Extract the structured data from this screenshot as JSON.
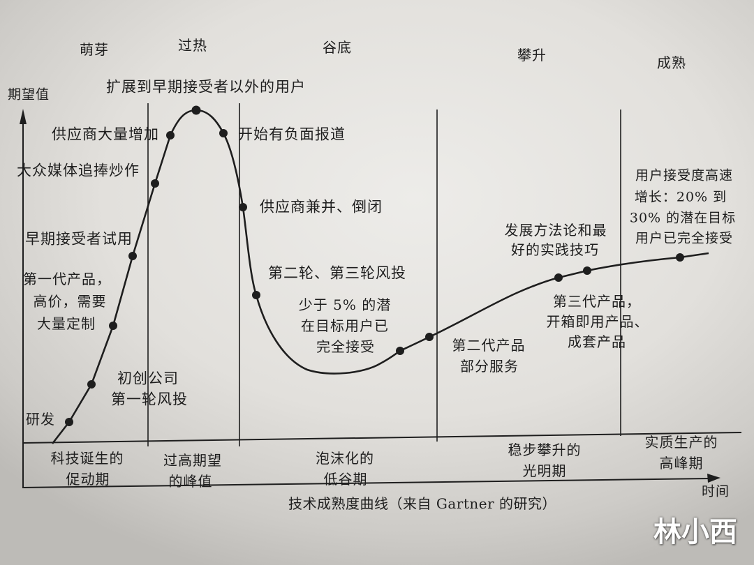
{
  "phases_top": [
    "萌芽",
    "过热",
    "谷底",
    "攀升",
    "成熟"
  ],
  "axes": {
    "y_label": "期望值",
    "x_label": "时间"
  },
  "annotations": {
    "expand_users": "扩展到早期接受者以外的用户",
    "vendors_increase": "供应商大量增加",
    "negative_press": "开始有负面报道",
    "media_hype": "大众媒体追捧炒作",
    "consolidation": "供应商兼并、倒闭",
    "early_adopters": "早期接受者试用",
    "first_gen": [
      "第一代产品，",
      "高价，需要",
      "大量定制"
    ],
    "funding_rounds": "第二轮、第三轮风投",
    "less_than_5": [
      "少于 5% 的潜",
      "在目标用户已",
      "完全接受"
    ],
    "methodology": [
      "发展方法论和最",
      "好的实践技巧"
    ],
    "adoption_growth": [
      "用户接受度高速",
      "增长：20% 到",
      "30% 的潜在目标",
      "用户已完全接受"
    ],
    "third_gen": [
      "第三代产品，",
      "开箱即用产品、",
      "成套产品"
    ],
    "startups": [
      "初创公司",
      "第一轮风投"
    ],
    "second_gen": [
      "第二代产品",
      "部分服务"
    ],
    "rnd": "研发"
  },
  "phases_bottom": [
    [
      "科技诞生的",
      "促动期"
    ],
    [
      "过高期望",
      "的峰值"
    ],
    [
      "泡沫化的",
      "低谷期"
    ],
    [
      "稳步攀升的",
      "光明期"
    ],
    [
      "实质生产的",
      "高峰期"
    ]
  ],
  "caption": "技术成熟度曲线（来自 Gartner 的研究）",
  "watermark": "林小西",
  "colors": {
    "ink": "#1e1e1e",
    "watermark": "#ffffff"
  }
}
